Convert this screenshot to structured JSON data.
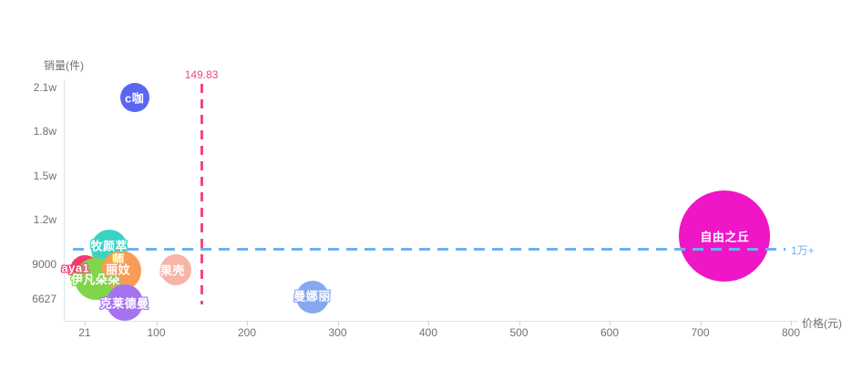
{
  "chart_data": {
    "type": "scatter",
    "title": "",
    "xlabel": "价格(元)",
    "ylabel": "销量(件)",
    "xlim": [
      0,
      810
    ],
    "ylim": [
      5100,
      21800
    ],
    "grid": false,
    "legend": null,
    "x_ticks": [
      {
        "label": "21",
        "value": 21
      },
      {
        "label": "100",
        "value": 100
      },
      {
        "label": "200",
        "value": 200
      },
      {
        "label": "300",
        "value": 300
      },
      {
        "label": "400",
        "value": 400
      },
      {
        "label": "500",
        "value": 500
      },
      {
        "label": "600",
        "value": 600
      },
      {
        "label": "700",
        "value": 700
      },
      {
        "label": "800",
        "value": 800
      }
    ],
    "y_ticks": [
      {
        "label": "2.1w",
        "value": 21000
      },
      {
        "label": "1.8w",
        "value": 18000
      },
      {
        "label": "1.5w",
        "value": 15000
      },
      {
        "label": "1.2w",
        "value": 12000
      },
      {
        "label": "9000",
        "value": 9000
      },
      {
        "label": "6627",
        "value": 6627
      }
    ],
    "series": [
      {
        "label": "师",
        "x": 43,
        "y": 9370,
        "r": 15,
        "color": "#f6c64a",
        "label_dx": 15,
        "label_dy": 0
      },
      {
        "label": "aya1",
        "x": 21,
        "y": 8600,
        "r": 16,
        "color": "#f2386f",
        "label_dx": -10,
        "label_dy": -2
      },
      {
        "label": "牧颜萃",
        "x": 48,
        "y": 10100,
        "r": 20,
        "color": "#3bd2c4",
        "label_dx": 0,
        "label_dy": -3
      },
      {
        "label": "伊凡朵朵",
        "x": 33,
        "y": 8000,
        "r": 23,
        "color": "#7fd64b",
        "label_dx": 0,
        "label_dy": 0
      },
      {
        "label": "丽妏",
        "x": 61,
        "y": 8550,
        "r": 22,
        "color": "#f99c55",
        "label_dx": -3,
        "label_dy": -2
      },
      {
        "label": "克莱德曼",
        "x": 65,
        "y": 6400,
        "r": 20,
        "color": "#a673f0",
        "label_dx": 0,
        "label_dy": 0
      },
      {
        "label": "果壳",
        "x": 122,
        "y": 8600,
        "r": 17,
        "color": "#f8b4a7",
        "label_dx": -4,
        "label_dy": 0
      },
      {
        "label": "曼娜丽",
        "x": 272,
        "y": 6800,
        "r": 18,
        "color": "#86a8f0",
        "label_dx": 0,
        "label_dy": -2
      },
      {
        "label": "c咖",
        "x": 76,
        "y": 20300,
        "r": 16,
        "color": "#5a66f2",
        "label_dx": 0,
        "label_dy": 0
      },
      {
        "label": "自由之丘",
        "x": 727,
        "y": 10900,
        "r": 50,
        "color": "#ee16c6",
        "label_dx": 0,
        "label_dy": 0
      }
    ],
    "marklines": {
      "vertical": {
        "label": "149.83",
        "value": 149.83,
        "color": "#f0497d"
      },
      "horizontal": {
        "label": "1万+",
        "value": 10000,
        "color": "#6cb1f3"
      }
    },
    "axis_style": {
      "label_color": "#6e7079",
      "line_color": "#dde3ee"
    }
  }
}
